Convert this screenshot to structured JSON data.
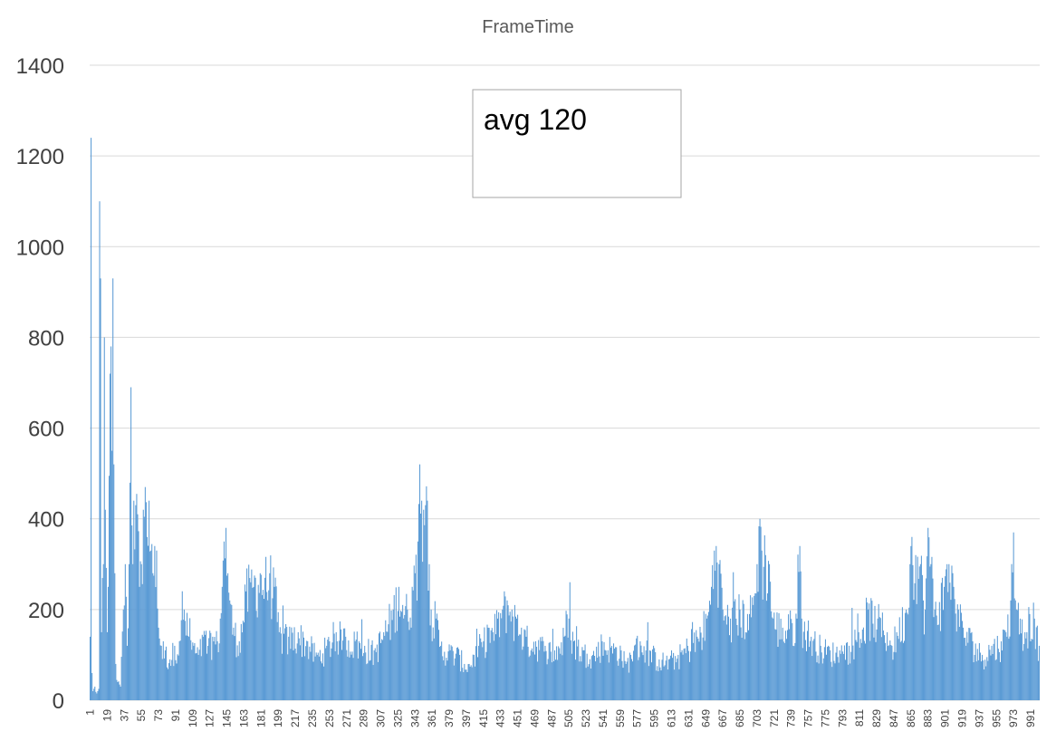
{
  "chart_data": {
    "type": "bar",
    "title": "FrameTime",
    "xlabel": "",
    "ylabel": "",
    "ylim": [
      0,
      1400
    ],
    "y_ticks": [
      0,
      200,
      400,
      600,
      800,
      1000,
      1200,
      1400
    ],
    "x_range": [
      1,
      1000
    ],
    "x_tick_labels": [
      "1",
      "19",
      "37",
      "55",
      "73",
      "91",
      "109",
      "127",
      "145",
      "163",
      "181",
      "199",
      "217",
      "235",
      "253",
      "271",
      "289",
      "307",
      "325",
      "343",
      "361",
      "379",
      "397",
      "415",
      "433",
      "451",
      "469",
      "487",
      "505",
      "523",
      "541",
      "559",
      "577",
      "595",
      "613",
      "631",
      "649",
      "667",
      "685",
      "703",
      "721",
      "739",
      "757",
      "775",
      "793",
      "811",
      "829",
      "847",
      "865",
      "883",
      "901",
      "919",
      "937",
      "955",
      "973",
      "991"
    ],
    "grid": true,
    "series_color": "#5b9bd5",
    "annotation": "avg 120",
    "profile": [
      [
        1,
        140
      ],
      [
        2,
        1240
      ],
      [
        3,
        60
      ],
      [
        4,
        20
      ],
      [
        6,
        30
      ],
      [
        8,
        15
      ],
      [
        10,
        25
      ],
      [
        11,
        1100
      ],
      [
        12,
        930
      ],
      [
        13,
        150
      ],
      [
        15,
        300
      ],
      [
        16,
        800
      ],
      [
        17,
        420
      ],
      [
        19,
        150
      ],
      [
        20,
        250
      ],
      [
        22,
        720
      ],
      [
        23,
        780
      ],
      [
        24,
        550
      ],
      [
        25,
        930
      ],
      [
        26,
        520
      ],
      [
        27,
        280
      ],
      [
        28,
        80
      ],
      [
        30,
        40
      ],
      [
        33,
        30
      ],
      [
        36,
        200
      ],
      [
        38,
        300
      ],
      [
        40,
        120
      ],
      [
        42,
        300
      ],
      [
        44,
        690
      ],
      [
        46,
        300
      ],
      [
        47,
        440
      ],
      [
        49,
        430
      ],
      [
        51,
        410
      ],
      [
        53,
        250
      ],
      [
        55,
        300
      ],
      [
        57,
        420
      ],
      [
        59,
        470
      ],
      [
        61,
        360
      ],
      [
        63,
        440
      ],
      [
        65,
        330
      ],
      [
        67,
        280
      ],
      [
        69,
        340
      ],
      [
        71,
        330
      ],
      [
        73,
        160
      ],
      [
        76,
        120
      ],
      [
        80,
        110
      ],
      [
        85,
        90
      ],
      [
        90,
        120
      ],
      [
        95,
        130
      ],
      [
        100,
        200
      ],
      [
        105,
        140
      ],
      [
        110,
        120
      ],
      [
        115,
        100
      ],
      [
        120,
        140
      ],
      [
        125,
        120
      ],
      [
        130,
        140
      ],
      [
        135,
        130
      ],
      [
        138,
        180
      ],
      [
        140,
        250
      ],
      [
        142,
        350
      ],
      [
        144,
        380
      ],
      [
        146,
        280
      ],
      [
        148,
        220
      ],
      [
        152,
        160
      ],
      [
        158,
        130
      ],
      [
        165,
        240
      ],
      [
        170,
        260
      ],
      [
        175,
        270
      ],
      [
        180,
        280
      ],
      [
        185,
        270
      ],
      [
        190,
        280
      ],
      [
        195,
        250
      ],
      [
        200,
        150
      ],
      [
        210,
        140
      ],
      [
        220,
        150
      ],
      [
        230,
        130
      ],
      [
        240,
        100
      ],
      [
        250,
        120
      ],
      [
        260,
        150
      ],
      [
        270,
        140
      ],
      [
        280,
        130
      ],
      [
        290,
        120
      ],
      [
        300,
        110
      ],
      [
        310,
        150
      ],
      [
        320,
        200
      ],
      [
        326,
        250
      ],
      [
        330,
        210
      ],
      [
        335,
        200
      ],
      [
        340,
        250
      ],
      [
        343,
        280
      ],
      [
        346,
        350
      ],
      [
        348,
        520
      ],
      [
        350,
        440
      ],
      [
        352,
        420
      ],
      [
        354,
        430
      ],
      [
        356,
        440
      ],
      [
        358,
        300
      ],
      [
        360,
        200
      ],
      [
        365,
        180
      ],
      [
        370,
        120
      ],
      [
        380,
        110
      ],
      [
        390,
        100
      ],
      [
        395,
        80
      ],
      [
        400,
        80
      ],
      [
        405,
        100
      ],
      [
        410,
        120
      ],
      [
        415,
        130
      ],
      [
        420,
        160
      ],
      [
        425,
        150
      ],
      [
        430,
        180
      ],
      [
        435,
        200
      ],
      [
        440,
        220
      ],
      [
        445,
        200
      ],
      [
        450,
        180
      ],
      [
        455,
        160
      ],
      [
        460,
        140
      ],
      [
        470,
        130
      ],
      [
        480,
        120
      ],
      [
        490,
        110
      ],
      [
        500,
        140
      ],
      [
        505,
        180
      ],
      [
        510,
        130
      ],
      [
        520,
        110
      ],
      [
        530,
        100
      ],
      [
        540,
        130
      ],
      [
        550,
        120
      ],
      [
        560,
        110
      ],
      [
        565,
        80
      ],
      [
        570,
        100
      ],
      [
        580,
        130
      ],
      [
        590,
        110
      ],
      [
        600,
        90
      ],
      [
        610,
        90
      ],
      [
        620,
        100
      ],
      [
        630,
        120
      ],
      [
        640,
        140
      ],
      [
        650,
        180
      ],
      [
        655,
        250
      ],
      [
        658,
        330
      ],
      [
        660,
        340
      ],
      [
        663,
        300
      ],
      [
        667,
        200
      ],
      [
        675,
        180
      ],
      [
        685,
        200
      ],
      [
        695,
        190
      ],
      [
        700,
        230
      ],
      [
        703,
        300
      ],
      [
        706,
        400
      ],
      [
        708,
        330
      ],
      [
        712,
        320
      ],
      [
        716,
        300
      ],
      [
        720,
        180
      ],
      [
        730,
        160
      ],
      [
        740,
        170
      ],
      [
        745,
        180
      ],
      [
        748,
        340
      ],
      [
        750,
        180
      ],
      [
        760,
        140
      ],
      [
        770,
        120
      ],
      [
        780,
        110
      ],
      [
        790,
        110
      ],
      [
        800,
        120
      ],
      [
        810,
        150
      ],
      [
        820,
        200
      ],
      [
        830,
        180
      ],
      [
        840,
        150
      ],
      [
        845,
        120
      ],
      [
        850,
        150
      ],
      [
        860,
        200
      ],
      [
        864,
        300
      ],
      [
        866,
        360
      ],
      [
        870,
        320
      ],
      [
        875,
        300
      ],
      [
        880,
        200
      ],
      [
        883,
        380
      ],
      [
        886,
        300
      ],
      [
        890,
        200
      ],
      [
        900,
        250
      ],
      [
        905,
        300
      ],
      [
        910,
        250
      ],
      [
        915,
        200
      ],
      [
        920,
        160
      ],
      [
        930,
        130
      ],
      [
        940,
        100
      ],
      [
        950,
        120
      ],
      [
        960,
        130
      ],
      [
        965,
        150
      ],
      [
        970,
        220
      ],
      [
        973,
        370
      ],
      [
        976,
        200
      ],
      [
        980,
        180
      ],
      [
        985,
        150
      ],
      [
        990,
        190
      ],
      [
        995,
        180
      ],
      [
        1000,
        120
      ]
    ]
  }
}
